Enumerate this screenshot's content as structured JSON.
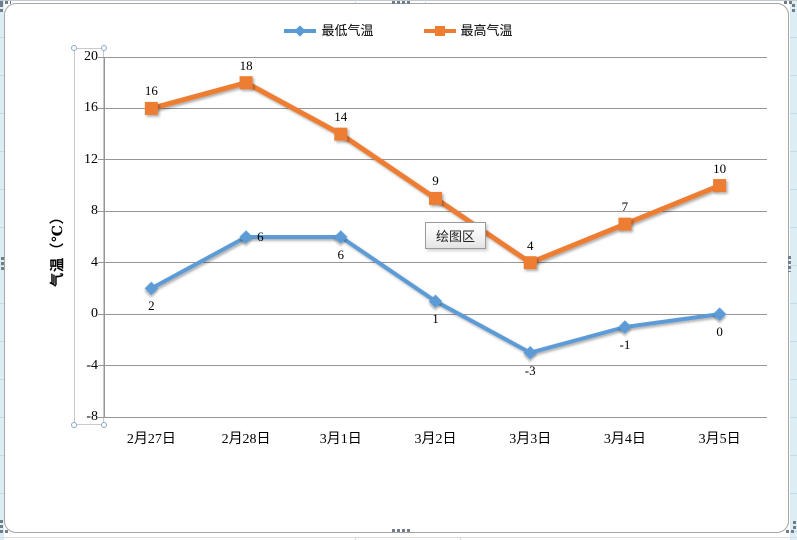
{
  "overlay": {
    "tooltip_text": "绘图区"
  },
  "chart_data": {
    "type": "line",
    "title": "",
    "xlabel": "",
    "ylabel": "气温（℃）",
    "categories": [
      "2月27日",
      "2月28日",
      "3月1日",
      "3月2日",
      "3月3日",
      "3月4日",
      "3月5日"
    ],
    "series": [
      {
        "name": "最低气温",
        "values": [
          2,
          6,
          6,
          1,
          -3,
          -1,
          0
        ],
        "color": "#5B9BD5",
        "marker": "diamond",
        "line_width": 4,
        "label_positions": [
          "below",
          "right",
          "below",
          "below",
          "below",
          "below",
          "below"
        ]
      },
      {
        "name": "最高气温",
        "values": [
          16,
          18,
          14,
          9,
          4,
          7,
          10
        ],
        "color": "#ED7D31",
        "marker": "square",
        "line_width": 5,
        "label_positions": [
          "above",
          "above",
          "above",
          "above",
          "above",
          "above",
          "above"
        ]
      }
    ],
    "ylim": [
      -8,
      20
    ],
    "ytick_step": 4,
    "yticks": [
      20,
      16,
      12,
      8,
      4,
      0,
      -4,
      -8
    ],
    "grid": "horizontal-major-only",
    "legend_position": "top-center",
    "data_labels_shown": true
  },
  "colors": {
    "series_min": "#5B9BD5",
    "series_max": "#ED7D31",
    "gridline": "#969696",
    "axis_line": "#969696",
    "chart_border": "#A6A6A6",
    "selection_handle": "#6F7E8A",
    "axis_selection_border": "#C9C9C9",
    "axis_selection_handle": "#8AA9CB",
    "worksheet_fill": "#DCEEF4",
    "worksheet_gridline": "#BFDDE8",
    "tooltip_border": "#9A9A9A"
  }
}
